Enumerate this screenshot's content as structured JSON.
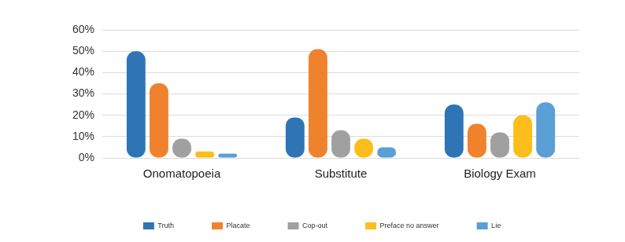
{
  "chart_data": {
    "type": "bar",
    "categories": [
      "Onomatopoeia",
      "Substitute",
      "Biology Exam"
    ],
    "series": [
      {
        "name": "Truth",
        "color": "#2e75b6",
        "values": [
          50,
          19,
          25
        ]
      },
      {
        "name": "Placate",
        "color": "#f0822e",
        "values": [
          35,
          51,
          16
        ]
      },
      {
        "name": "Cop-out",
        "color": "#a0a0a0",
        "values": [
          9,
          13,
          12
        ]
      },
      {
        "name": "Preface no answer",
        "color": "#fdbd1a",
        "values": [
          3,
          9,
          20
        ]
      },
      {
        "name": "Lie",
        "color": "#5a9fd6",
        "values": [
          2,
          5,
          26
        ]
      }
    ],
    "ylim": [
      0,
      60
    ],
    "yticks": [
      {
        "value": 0,
        "label": "0%"
      },
      {
        "value": 10,
        "label": "10%"
      },
      {
        "value": 20,
        "label": "20%"
      },
      {
        "value": 30,
        "label": "30%"
      },
      {
        "value": 40,
        "label": "40%"
      },
      {
        "value": 50,
        "label": "50%"
      },
      {
        "value": 60,
        "label": "60%"
      }
    ],
    "grid": true,
    "legend": "bottom"
  }
}
